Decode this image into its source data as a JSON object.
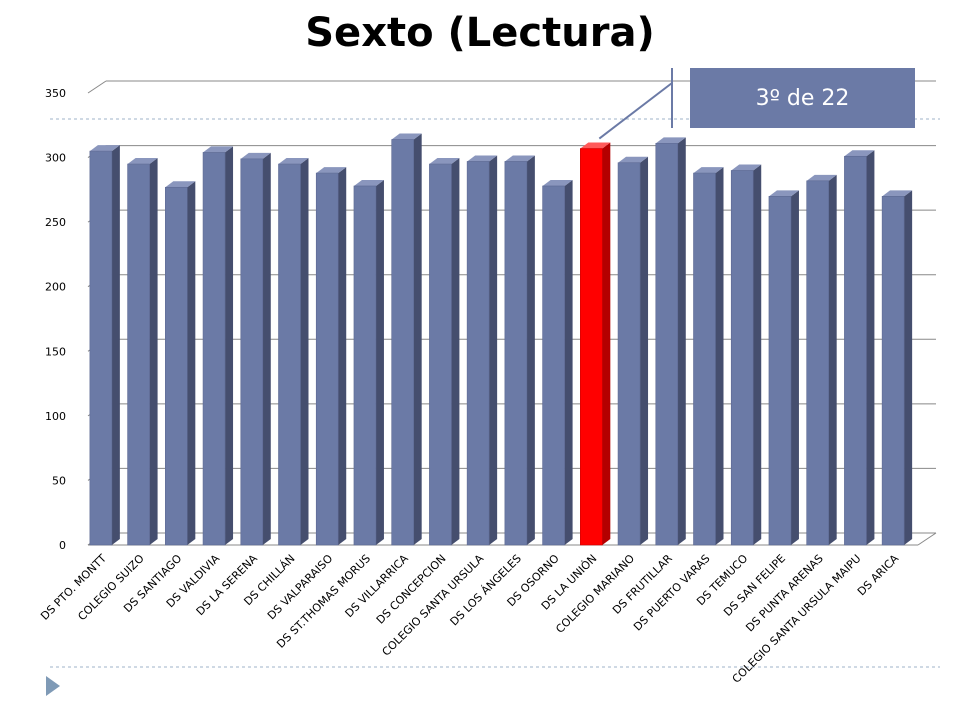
{
  "chart_data": {
    "type": "bar",
    "title": "Sexto (Lectura)",
    "categories": [
      "DS PTO. MONTT",
      "COLEGIO SUIZO",
      "DS SANTIAGO",
      "DS VALDIVIA",
      "DS LA SERENA",
      "DS CHILLÁN",
      "DS VALPARAISO",
      "DS ST.THOMAS MORUS",
      "DS VILLARRICA",
      "DS CONCEPCION",
      "COLEGIO SANTA URSULA",
      "DS LOS ÁNGELES",
      "DS OSORNO",
      "DS LA UNIÓN",
      "COLEGIO MARIANO",
      "DS FRUTILLAR",
      "DS PUERTO VARAS",
      "DS TEMUCO",
      "DS SAN FELIPE",
      "DS PUNTA ARENAS",
      "COLEGIO SANTA URSULA MAIPU",
      "DS ARICA"
    ],
    "values": [
      305,
      295,
      277,
      304,
      299,
      295,
      288,
      278,
      314,
      295,
      297,
      297,
      278,
      307,
      296,
      311,
      288,
      290,
      270,
      282,
      301,
      270
    ],
    "highlight_index": 13,
    "highlight_color": "#ff0000",
    "bar_color": "#6b7aa6",
    "ylim": [
      0,
      350
    ],
    "yticks": [
      0,
      50,
      100,
      150,
      200,
      250,
      300,
      350
    ],
    "grid": true,
    "xlabel": "",
    "ylabel": "",
    "annotation": "3º de 22"
  }
}
